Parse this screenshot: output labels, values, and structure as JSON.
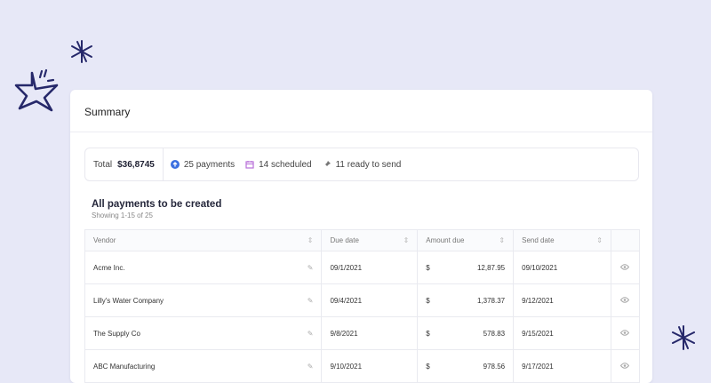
{
  "card": {
    "title": "Summary"
  },
  "summary": {
    "total_label": "Total",
    "total_value": "$36,8745",
    "payments": "25 payments",
    "scheduled": "14 scheduled",
    "ready": "11 ready to send"
  },
  "section": {
    "title": "All payments to be created",
    "subtitle": "Showing 1-15 of 25"
  },
  "table": {
    "headers": [
      "Vendor",
      "Due date",
      "Amount due",
      "Send date"
    ],
    "currency": "$",
    "rows": [
      {
        "vendor": "Acme Inc.",
        "due": "09/1/2021",
        "amount": "12,87.95",
        "send": "09/10/2021"
      },
      {
        "vendor": "Lilly's Water Company",
        "due": "09/4/2021",
        "amount": "1,378.37",
        "send": "9/12/2021"
      },
      {
        "vendor": "The Supply Co",
        "due": "9/8/2021",
        "amount": "578.83",
        "send": "9/15/2021"
      },
      {
        "vendor": "ABC Manufacturing",
        "due": "9/10/2021",
        "amount": "978.56",
        "send": "9/17/2021"
      }
    ]
  },
  "colors": {
    "background": "#e7e8f7",
    "decoration": "#26286a",
    "payments_icon": "#3b6fe0",
    "scheduled_icon": "#b86fd8"
  }
}
